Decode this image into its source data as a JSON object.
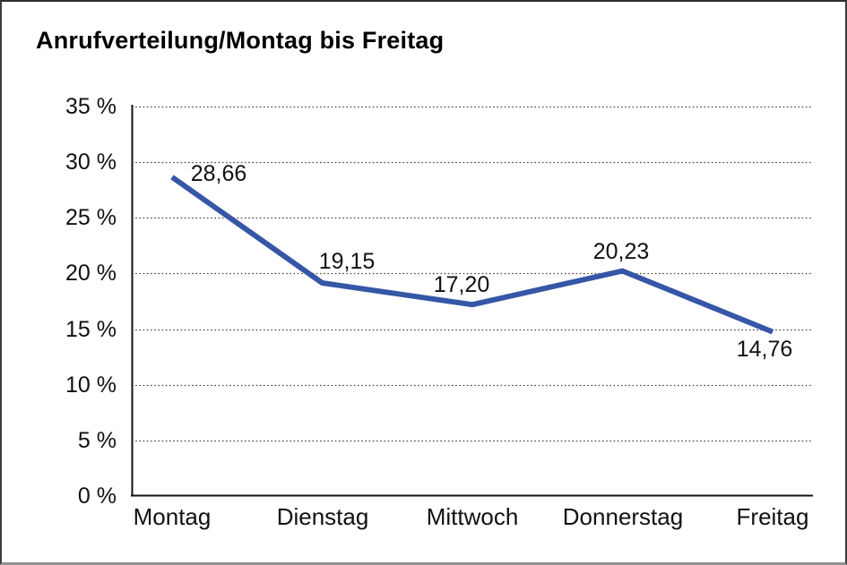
{
  "title": "Anrufverteilung/Montag bis Freitag",
  "colors": {
    "line": "#3656A6",
    "grid": "#454545",
    "axis": "#111111",
    "text": "#111111",
    "background": "#ffffff"
  },
  "chart_data": {
    "type": "line",
    "title": "Anrufverteilung/Montag bis Freitag",
    "categories": [
      "Montag",
      "Dienstag",
      "Mittwoch",
      "Donnerstag",
      "Freitag"
    ],
    "values": [
      28.66,
      19.15,
      17.2,
      20.23,
      14.76
    ],
    "point_labels": [
      "28,66",
      "19,15",
      "17,20",
      "20,23",
      "14,76"
    ],
    "xlabel": "",
    "ylabel": "",
    "ylim": [
      0,
      35
    ],
    "yticks": [
      {
        "value": 0,
        "label": "0 %"
      },
      {
        "value": 5,
        "label": "5 %"
      },
      {
        "value": 10,
        "label": "10 %"
      },
      {
        "value": 15,
        "label": "15 %"
      },
      {
        "value": 20,
        "label": "20 %"
      },
      {
        "value": 25,
        "label": "25 %"
      },
      {
        "value": 30,
        "label": "30 %"
      },
      {
        "value": 35,
        "label": "35 %"
      }
    ],
    "grid": "horizontal-dotted",
    "legend": "none",
    "line_color": "#3656A6"
  }
}
